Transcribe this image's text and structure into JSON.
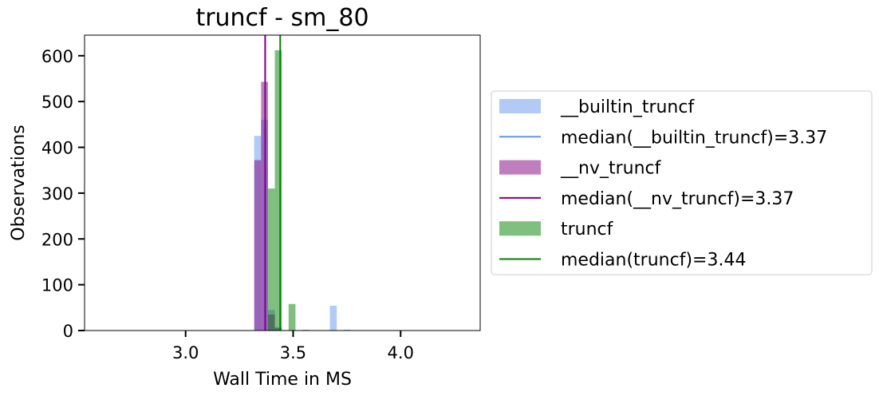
{
  "chart_data": {
    "type": "histogram",
    "title": "truncf - sm_80",
    "xlabel": "Wall Time in MS",
    "ylabel": "Observations",
    "xlim": [
      2.53,
      4.37
    ],
    "ylim": [
      0,
      645
    ],
    "xticks": [
      3.0,
      3.5,
      4.0
    ],
    "xtick_labels": [
      "3.0",
      "3.5",
      "4.0"
    ],
    "yticks": [
      0,
      100,
      200,
      300,
      400,
      500,
      600
    ],
    "ytick_labels": [
      "0",
      "100",
      "200",
      "300",
      "400",
      "500",
      "600"
    ],
    "grid": false,
    "legend_position": "outside-right",
    "bin_width": 0.032,
    "series": [
      {
        "name": "__builtin_truncf",
        "color": "#6495ed",
        "bar_alpha": 0.5,
        "bins": [
          {
            "x": 3.335,
            "y": 425
          },
          {
            "x": 3.367,
            "y": 460
          },
          {
            "x": 3.399,
            "y": 45
          },
          {
            "x": 3.431,
            "y": 8
          },
          {
            "x": 3.559,
            "y": 2
          },
          {
            "x": 3.687,
            "y": 54
          },
          {
            "x": 3.751,
            "y": 2
          }
        ],
        "median_label": "median(__builtin_truncf)=3.37",
        "median": 3.37,
        "median_color": "#6495ed"
      },
      {
        "name": "__nv_truncf",
        "color": "#800080",
        "bar_alpha": 0.5,
        "bins": [
          {
            "x": 3.335,
            "y": 372
          },
          {
            "x": 3.367,
            "y": 543
          },
          {
            "x": 3.399,
            "y": 35
          },
          {
            "x": 3.431,
            "y": 5
          }
        ],
        "median_label": "median(__nv_truncf)=3.37",
        "median": 3.37,
        "median_color": "#800080"
      },
      {
        "name": "truncf",
        "color": "#008000",
        "bar_alpha": 0.5,
        "bins": [
          {
            "x": 3.399,
            "y": 310
          },
          {
            "x": 3.431,
            "y": 612
          },
          {
            "x": 3.495,
            "y": 58
          }
        ],
        "median_label": "median(truncf)=3.44",
        "median": 3.44,
        "median_color": "#008000"
      }
    ]
  }
}
